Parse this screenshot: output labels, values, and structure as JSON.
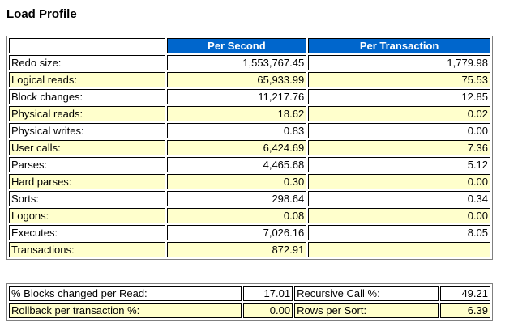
{
  "page": {
    "title": "Load Profile"
  },
  "load_profile": {
    "columns": [
      "",
      "Per Second",
      "Per Transaction"
    ],
    "rows": [
      {
        "label": "Redo size:",
        "per_second": "1,553,767.45",
        "per_transaction": "1,779.98"
      },
      {
        "label": "Logical reads:",
        "per_second": "65,933.99",
        "per_transaction": "75.53"
      },
      {
        "label": "Block changes:",
        "per_second": "11,217.76",
        "per_transaction": "12.85"
      },
      {
        "label": "Physical reads:",
        "per_second": "18.62",
        "per_transaction": "0.02"
      },
      {
        "label": "Physical writes:",
        "per_second": "0.83",
        "per_transaction": "0.00"
      },
      {
        "label": "User calls:",
        "per_second": "6,424.69",
        "per_transaction": "7.36"
      },
      {
        "label": "Parses:",
        "per_second": "4,465.68",
        "per_transaction": "5.12"
      },
      {
        "label": "Hard parses:",
        "per_second": "0.30",
        "per_transaction": "0.00"
      },
      {
        "label": "Sorts:",
        "per_second": "298.64",
        "per_transaction": "0.34"
      },
      {
        "label": "Logons:",
        "per_second": "0.08",
        "per_transaction": "0.00"
      },
      {
        "label": "Executes:",
        "per_second": "7,026.16",
        "per_transaction": "8.05"
      },
      {
        "label": "Transactions:",
        "per_second": "872.91",
        "per_transaction": ""
      }
    ]
  },
  "efficiency": {
    "rows": [
      {
        "label1": "% Blocks changed per Read:",
        "value1": "17.01",
        "label2": "Recursive Call %:",
        "value2": "49.21"
      },
      {
        "label1": "Rollback per transaction %:",
        "value1": "0.00",
        "label2": "Rows per Sort:",
        "value2": "6.39"
      }
    ]
  },
  "colors": {
    "header_bg": "#0066cc",
    "header_text": "#ffffff",
    "alt_row_bg": "#ffffcc",
    "row_bg": "#ffffff"
  }
}
